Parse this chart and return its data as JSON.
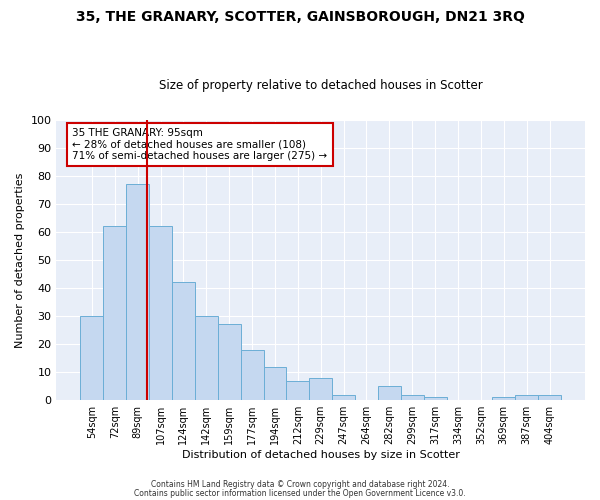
{
  "title": "35, THE GRANARY, SCOTTER, GAINSBOROUGH, DN21 3RQ",
  "subtitle": "Size of property relative to detached houses in Scotter",
  "xlabel": "Distribution of detached houses by size in Scotter",
  "ylabel": "Number of detached properties",
  "bar_labels": [
    "54sqm",
    "72sqm",
    "89sqm",
    "107sqm",
    "124sqm",
    "142sqm",
    "159sqm",
    "177sqm",
    "194sqm",
    "212sqm",
    "229sqm",
    "247sqm",
    "264sqm",
    "282sqm",
    "299sqm",
    "317sqm",
    "334sqm",
    "352sqm",
    "369sqm",
    "387sqm",
    "404sqm"
  ],
  "bar_values": [
    30,
    62,
    77,
    62,
    42,
    30,
    27,
    18,
    12,
    7,
    8,
    2,
    0,
    5,
    2,
    1,
    0,
    0,
    1,
    2,
    2
  ],
  "bar_color": "#c5d8f0",
  "bar_edge_color": "#6baed6",
  "bar_width": 1.0,
  "vline_x": 2.41,
  "vline_color": "#cc0000",
  "ylim": [
    0,
    100
  ],
  "yticks": [
    0,
    10,
    20,
    30,
    40,
    50,
    60,
    70,
    80,
    90,
    100
  ],
  "annotation_box_text": "35 THE GRANARY: 95sqm\n← 28% of detached houses are smaller (108)\n71% of semi-detached houses are larger (275) →",
  "bg_color": "#ffffff",
  "plot_bg_color": "#e8eef8",
  "footer_line1": "Contains HM Land Registry data © Crown copyright and database right 2024.",
  "footer_line2": "Contains public sector information licensed under the Open Government Licence v3.0."
}
